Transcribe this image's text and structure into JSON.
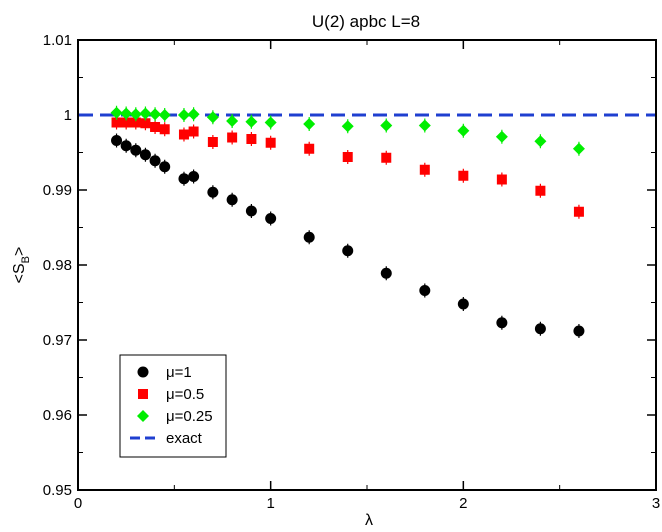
{
  "chart_data": {
    "type": "scatter",
    "title": "U(2)  apbc L=8",
    "xlabel": "λ",
    "ylabel": "<S_B>",
    "ylabel_main": "<S",
    "ylabel_sub": "B",
    "ylabel_close": ">",
    "xlim": [
      0,
      3
    ],
    "ylim": [
      0.95,
      1.01
    ],
    "xticks": [
      0,
      1,
      2,
      3
    ],
    "xtick_labels": [
      "0",
      "1",
      "2",
      "3"
    ],
    "yticks": [
      0.95,
      0.96,
      0.97,
      0.98,
      0.99,
      1.0,
      1.01
    ],
    "ytick_labels": [
      "0.95",
      "0.96",
      "0.97",
      "0.98",
      "0.99",
      "1",
      "1.01"
    ],
    "grid": false,
    "legend_position": "bottom-left",
    "series": [
      {
        "name": "μ=1",
        "marker": "circle",
        "color": "#000000",
        "x": [
          0.2,
          0.25,
          0.3,
          0.35,
          0.4,
          0.45,
          0.55,
          0.6,
          0.7,
          0.8,
          0.9,
          1.0,
          1.2,
          1.4,
          1.6,
          1.8,
          2.0,
          2.2,
          2.4,
          2.6
        ],
        "y": [
          0.9966,
          0.9959,
          0.9953,
          0.9947,
          0.9939,
          0.9931,
          0.9915,
          0.9918,
          0.9897,
          0.9887,
          0.9872,
          0.9862,
          0.9837,
          0.9819,
          0.9789,
          0.9766,
          0.9748,
          0.9723,
          0.9715,
          0.9712
        ]
      },
      {
        "name": "μ=0.5",
        "marker": "square",
        "color": "#ff0000",
        "x": [
          0.2,
          0.25,
          0.3,
          0.35,
          0.4,
          0.45,
          0.55,
          0.6,
          0.7,
          0.8,
          0.9,
          1.0,
          1.2,
          1.4,
          1.6,
          1.8,
          2.0,
          2.2,
          2.4,
          2.6
        ],
        "y": [
          0.999,
          0.999,
          0.999,
          0.9989,
          0.9984,
          0.9981,
          0.9974,
          0.9978,
          0.9964,
          0.997,
          0.9968,
          0.9963,
          0.9955,
          0.9944,
          0.9943,
          0.9927,
          0.9919,
          0.9914,
          0.9899,
          0.9871
        ]
      },
      {
        "name": "μ=0.25",
        "marker": "diamond",
        "color": "#00ee00",
        "x": [
          0.2,
          0.25,
          0.3,
          0.35,
          0.4,
          0.45,
          0.55,
          0.6,
          0.7,
          0.8,
          0.9,
          1.0,
          1.2,
          1.4,
          1.6,
          1.8,
          2.0,
          2.2,
          2.4,
          2.6
        ],
        "y": [
          1.0003,
          1.0002,
          1.0001,
          1.0002,
          1.0001,
          1.0,
          1.0,
          1.0001,
          0.9997,
          0.9992,
          0.9991,
          0.999,
          0.9988,
          0.9985,
          0.9986,
          0.9986,
          0.9979,
          0.9971,
          0.9965,
          0.9955
        ]
      }
    ],
    "reference_line": {
      "name": "exact",
      "y": 1.0,
      "style": "dashed",
      "color": "#1f3fd0"
    }
  }
}
